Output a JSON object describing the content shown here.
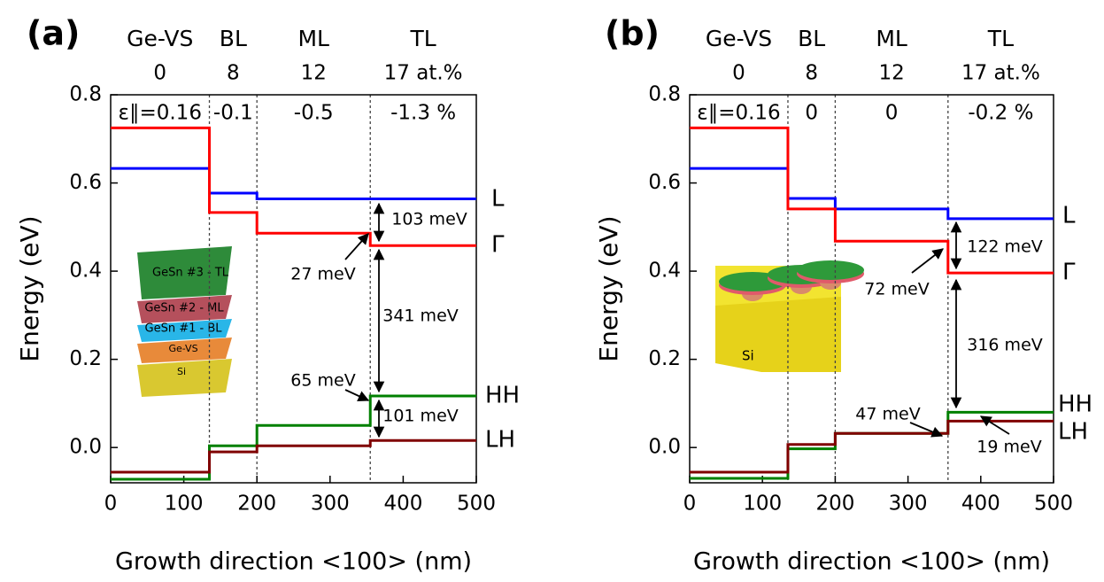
{
  "chart_data": [
    {
      "type": "line",
      "panel_label": "(a)",
      "layers": [
        "Ge-VS",
        "BL",
        "ML",
        "TL"
      ],
      "compositions": [
        "0",
        "8",
        "12",
        "17 at.%"
      ],
      "strains": [
        "ε∥=0.16",
        "-0.1",
        "-0.5",
        "-1.3 %"
      ],
      "boundaries": [
        135,
        200,
        355
      ],
      "x_label": "Growth direction <100> (nm)",
      "y_label": "Energy (eV)",
      "xlim": [
        0,
        500
      ],
      "ylim": [
        -0.08,
        0.8
      ],
      "xticks": [
        0,
        100,
        200,
        300,
        400,
        500
      ],
      "yticks": [
        {
          "value": 0,
          "label": "0.0"
        },
        0.2,
        0.4,
        0.6,
        0.8
      ],
      "series": [
        {
          "name": "L",
          "color": "#0000ff",
          "x": [
            0,
            135,
            135,
            200,
            200,
            355,
            355,
            500
          ],
          "values": [
            0.633,
            0.633,
            0.577,
            0.577,
            0.564,
            0.564,
            0.564,
            0.564
          ]
        },
        {
          "name": "Γ",
          "color": "#ff0000",
          "x": [
            0,
            135,
            135,
            200,
            200,
            355,
            355,
            500
          ],
          "values": [
            0.725,
            0.725,
            0.533,
            0.533,
            0.486,
            0.486,
            0.458,
            0.458
          ]
        },
        {
          "name": "HH",
          "color": "#008000",
          "x": [
            0,
            135,
            135,
            200,
            200,
            355,
            355,
            500
          ],
          "values": [
            -0.072,
            -0.072,
            0.004,
            0.004,
            0.05,
            0.05,
            0.117,
            0.117
          ]
        },
        {
          "name": "LH",
          "color": "#800000",
          "x": [
            0,
            135,
            135,
            200,
            200,
            355,
            355,
            500
          ],
          "values": [
            -0.056,
            -0.056,
            -0.01,
            -0.01,
            0.004,
            0.004,
            0.016,
            0.016
          ]
        }
      ],
      "annotations": [
        "103 meV",
        "27 meV",
        "341 meV",
        "65 meV",
        "101 meV"
      ],
      "inset_labels": [
        "GeSn #3 - TL",
        "GeSn #2 - ML",
        "GeSn #1 - BL",
        "Ge-VS",
        "Si"
      ]
    },
    {
      "type": "line",
      "panel_label": "(b)",
      "layers": [
        "Ge-VS",
        "BL",
        "ML",
        "TL"
      ],
      "compositions": [
        "0",
        "8",
        "12",
        "17 at.%"
      ],
      "strains": [
        "ε∥=0.16",
        "0",
        "0",
        "-0.2 %"
      ],
      "boundaries": [
        135,
        200,
        355
      ],
      "x_label": "Growth direction <100> (nm)",
      "y_label": "Energy (eV)",
      "xlim": [
        0,
        500
      ],
      "ylim": [
        -0.08,
        0.8
      ],
      "xticks": [
        0,
        100,
        200,
        300,
        400,
        500
      ],
      "yticks": [
        {
          "value": 0,
          "label": "0.0"
        },
        0.2,
        0.4,
        0.6,
        0.8
      ],
      "series": [
        {
          "name": "L",
          "color": "#0000ff",
          "x": [
            0,
            135,
            135,
            200,
            200,
            355,
            355,
            500
          ],
          "values": [
            0.633,
            0.633,
            0.565,
            0.565,
            0.541,
            0.541,
            0.519,
            0.519
          ]
        },
        {
          "name": "Γ",
          "color": "#ff0000",
          "x": [
            0,
            135,
            135,
            200,
            200,
            355,
            355,
            500
          ],
          "values": [
            0.725,
            0.725,
            0.541,
            0.541,
            0.468,
            0.468,
            0.396,
            0.396
          ]
        },
        {
          "name": "HH",
          "color": "#008000",
          "x": [
            0,
            135,
            135,
            200,
            200,
            355,
            355,
            500
          ],
          "values": [
            -0.07,
            -0.07,
            -0.003,
            -0.003,
            0.032,
            0.032,
            0.08,
            0.08
          ]
        },
        {
          "name": "LH",
          "color": "#800000",
          "x": [
            0,
            135,
            135,
            200,
            200,
            355,
            355,
            500
          ],
          "values": [
            -0.056,
            -0.056,
            0.007,
            0.007,
            0.032,
            0.032,
            0.06,
            0.06
          ]
        }
      ],
      "annotations": [
        "122 meV",
        "72 meV",
        "316 meV",
        "47 meV",
        "19 meV"
      ],
      "inset_labels": [
        "Si"
      ]
    }
  ]
}
